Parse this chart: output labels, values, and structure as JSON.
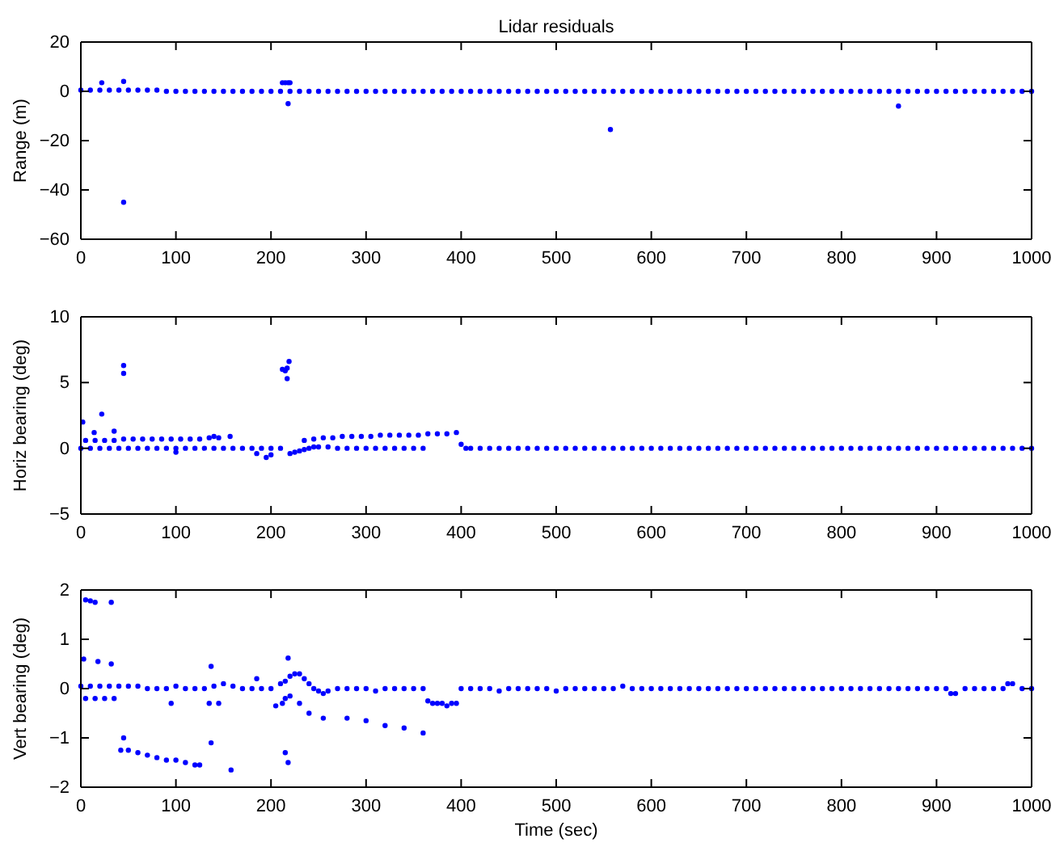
{
  "chart_data": [
    {
      "type": "scatter",
      "title": "Lidar residuals",
      "ylabel": "Range (m)",
      "xlim": [
        0,
        1000
      ],
      "xticks": [
        0,
        100,
        200,
        300,
        400,
        500,
        600,
        700,
        800,
        900,
        1000
      ],
      "ylim": [
        -60,
        20
      ],
      "yticks": [
        -60,
        -40,
        -20,
        0,
        20
      ],
      "marker": "circle",
      "grid": false,
      "series": [
        {
          "color": "#0000ff",
          "x": [
            0,
            10,
            20,
            30,
            40,
            50,
            60,
            70,
            80,
            90,
            100,
            110,
            120,
            130,
            140,
            150,
            160,
            170,
            180,
            190,
            200,
            210,
            220,
            230,
            240,
            250,
            260,
            270,
            280,
            290,
            300,
            310,
            320,
            330,
            340,
            350,
            360,
            370,
            380,
            390,
            400,
            410,
            420,
            430,
            440,
            450,
            460,
            470,
            480,
            490,
            500,
            510,
            520,
            530,
            540,
            550,
            560,
            570,
            580,
            590,
            600,
            610,
            620,
            630,
            640,
            650,
            660,
            670,
            680,
            690,
            700,
            710,
            720,
            730,
            740,
            750,
            760,
            770,
            780,
            790,
            800,
            810,
            820,
            830,
            840,
            850,
            860,
            870,
            880,
            890,
            900,
            910,
            920,
            930,
            940,
            950,
            960,
            970,
            980,
            990,
            1000,
            22,
            45,
            45,
            212,
            215,
            218,
            220,
            218,
            557,
            860
          ],
          "values": [
            0.5,
            0.5,
            0.5,
            0.5,
            0.5,
            0.5,
            0.5,
            0.5,
            0.5,
            0,
            0,
            0,
            0,
            0,
            0,
            0,
            0,
            0,
            0,
            0,
            0,
            0,
            0,
            0,
            0,
            0,
            0,
            0,
            0,
            0,
            0,
            0,
            0,
            0,
            0,
            0,
            0,
            0,
            0,
            0,
            0,
            0,
            0,
            0,
            0,
            0,
            0,
            0,
            0,
            0,
            0,
            0,
            0,
            0,
            0,
            0,
            0,
            0,
            0,
            0,
            0,
            0,
            0,
            0,
            0,
            0,
            0,
            0,
            0,
            0,
            0,
            0,
            0,
            0,
            0,
            0,
            0,
            0,
            0,
            0,
            0,
            0,
            0,
            0,
            0,
            0,
            0,
            0,
            0,
            0,
            0,
            0,
            0,
            0,
            0,
            0,
            0,
            0,
            0,
            0,
            0,
            3.5,
            4,
            -45,
            3.5,
            3.5,
            3.5,
            3.5,
            -5,
            -15.5,
            -6
          ]
        }
      ]
    },
    {
      "type": "scatter",
      "ylabel": "Horiz bearing (deg)",
      "xlim": [
        0,
        1000
      ],
      "xticks": [
        0,
        100,
        200,
        300,
        400,
        500,
        600,
        700,
        800,
        900,
        1000
      ],
      "ylim": [
        -5,
        10
      ],
      "yticks": [
        -5,
        0,
        5,
        10
      ],
      "marker": "circle",
      "grid": false,
      "series": [
        {
          "color": "#0000ff",
          "x": [
            0,
            10,
            20,
            30,
            40,
            50,
            60,
            70,
            80,
            90,
            100,
            110,
            120,
            130,
            140,
            150,
            160,
            170,
            180,
            190,
            200,
            210,
            220,
            225,
            230,
            235,
            240,
            245,
            250,
            260,
            270,
            280,
            290,
            300,
            310,
            320,
            330,
            340,
            350,
            360,
            5,
            15,
            25,
            35,
            45,
            55,
            65,
            75,
            85,
            95,
            105,
            115,
            125,
            135,
            145,
            235,
            245,
            255,
            265,
            275,
            285,
            295,
            305,
            315,
            325,
            335,
            345,
            355,
            365,
            375,
            385,
            395,
            400,
            405,
            410,
            420,
            430,
            440,
            450,
            460,
            470,
            480,
            490,
            500,
            510,
            520,
            530,
            540,
            550,
            560,
            570,
            580,
            590,
            600,
            610,
            620,
            630,
            640,
            650,
            660,
            670,
            680,
            690,
            700,
            710,
            720,
            730,
            740,
            750,
            760,
            770,
            780,
            790,
            800,
            810,
            820,
            830,
            840,
            850,
            860,
            870,
            880,
            890,
            900,
            910,
            920,
            930,
            940,
            950,
            960,
            970,
            980,
            990,
            1000,
            2,
            45,
            45,
            22,
            35,
            14,
            212,
            215,
            217,
            219,
            217,
            185,
            195,
            200,
            140,
            157,
            100
          ],
          "values": [
            0,
            0,
            0,
            0,
            0,
            0,
            0,
            0,
            0,
            0,
            0,
            0,
            0,
            0,
            0,
            0,
            0,
            0,
            0,
            0,
            0,
            0,
            -0.4,
            -0.3,
            -0.2,
            -0.1,
            0,
            0.1,
            0.1,
            0.1,
            0,
            0,
            0,
            0,
            0,
            0,
            0,
            0,
            0,
            0,
            0.6,
            0.6,
            0.6,
            0.6,
            0.7,
            0.7,
            0.7,
            0.7,
            0.7,
            0.7,
            0.7,
            0.7,
            0.7,
            0.8,
            0.8,
            0.6,
            0.7,
            0.8,
            0.8,
            0.9,
            0.9,
            0.9,
            0.9,
            1,
            1,
            1,
            1,
            1,
            1.1,
            1.1,
            1.1,
            1.2,
            0.3,
            0,
            0,
            0,
            0,
            0,
            0,
            0,
            0,
            0,
            0,
            0,
            0,
            0,
            0,
            0,
            0,
            0,
            0,
            0,
            0,
            0,
            0,
            0,
            0,
            0,
            0,
            0,
            0,
            0,
            0,
            0,
            0,
            0,
            0,
            0,
            0,
            0,
            0,
            0,
            0,
            0,
            0,
            0,
            0,
            0,
            0,
            0,
            0,
            0,
            0,
            0,
            0,
            0,
            0,
            0,
            0,
            0,
            0,
            0,
            0,
            0,
            2,
            6.3,
            5.7,
            2.6,
            1.3,
            1.2,
            6,
            5.9,
            5.3,
            6.6,
            6.1,
            -0.4,
            -0.7,
            -0.5,
            0.9,
            0.9,
            -0.3
          ]
        }
      ]
    },
    {
      "type": "scatter",
      "ylabel": "Vert bearing (deg)",
      "xlabel": "Time (sec)",
      "xlim": [
        0,
        1000
      ],
      "xticks": [
        0,
        100,
        200,
        300,
        400,
        500,
        600,
        700,
        800,
        900,
        1000
      ],
      "ylim": [
        -2,
        2
      ],
      "yticks": [
        -2,
        -1,
        0,
        1,
        2
      ],
      "marker": "circle",
      "grid": false,
      "series": [
        {
          "color": "#0000ff",
          "x": [
            0,
            10,
            20,
            30,
            40,
            50,
            60,
            70,
            80,
            90,
            100,
            110,
            120,
            130,
            140,
            150,
            160,
            170,
            180,
            190,
            200,
            210,
            215,
            220,
            225,
            230,
            235,
            240,
            245,
            250,
            255,
            260,
            270,
            280,
            290,
            300,
            310,
            320,
            330,
            340,
            350,
            360,
            365,
            370,
            375,
            380,
            385,
            390,
            395,
            400,
            410,
            420,
            430,
            440,
            450,
            460,
            470,
            480,
            490,
            500,
            510,
            520,
            530,
            540,
            550,
            560,
            570,
            580,
            590,
            600,
            610,
            620,
            630,
            640,
            650,
            660,
            670,
            680,
            690,
            700,
            710,
            720,
            730,
            740,
            750,
            760,
            770,
            780,
            790,
            800,
            810,
            820,
            830,
            840,
            850,
            860,
            870,
            880,
            890,
            900,
            910,
            920,
            930,
            940,
            950,
            960,
            970,
            980,
            990,
            1000,
            5,
            15,
            25,
            35,
            230,
            240,
            255,
            280,
            300,
            320,
            340,
            360,
            42,
            50,
            60,
            70,
            80,
            90,
            100,
            110,
            120,
            125,
            5,
            10,
            15,
            32,
            3,
            18,
            32,
            45,
            137,
            137,
            158,
            215,
            218,
            218,
            212,
            215,
            220,
            205,
            135,
            145,
            95,
            185,
            975,
            915
          ],
          "values": [
            0.05,
            0.05,
            0.05,
            0.05,
            0.05,
            0.05,
            0.05,
            0,
            0,
            0,
            0.05,
            0,
            0,
            0,
            0.05,
            0.1,
            0.05,
            0,
            0,
            0,
            0,
            0.1,
            0.15,
            0.25,
            0.3,
            0.3,
            0.2,
            0.1,
            0,
            -0.05,
            -0.1,
            -0.05,
            0,
            0,
            0,
            0,
            -0.05,
            0,
            0,
            0,
            0,
            0,
            -0.25,
            -0.3,
            -0.3,
            -0.3,
            -0.35,
            -0.3,
            -0.3,
            0,
            0,
            0,
            0,
            -0.05,
            0,
            0,
            0,
            0,
            0,
            -0.05,
            0,
            0,
            0,
            0,
            0,
            0,
            0.05,
            0,
            0,
            0,
            0,
            0,
            0,
            0,
            0,
            0,
            0,
            0,
            0,
            0,
            0,
            0,
            0,
            0,
            0,
            0,
            0,
            0,
            0,
            0,
            0,
            0,
            0,
            0,
            0,
            0,
            0,
            0,
            0,
            0,
            0,
            -0.1,
            0,
            0,
            0,
            0,
            0,
            0.1,
            0,
            0,
            -0.2,
            -0.2,
            -0.2,
            -0.2,
            -0.3,
            -0.5,
            -0.6,
            -0.6,
            -0.65,
            -0.75,
            -0.8,
            -0.9,
            -1.25,
            -1.25,
            -1.3,
            -1.35,
            -1.4,
            -1.45,
            -1.45,
            -1.5,
            -1.55,
            -1.55,
            1.8,
            1.78,
            1.75,
            1.75,
            0.6,
            0.55,
            0.5,
            -1,
            0.45,
            -1.1,
            -1.65,
            -1.3,
            -1.5,
            0.62,
            -0.3,
            -0.2,
            -0.15,
            -0.35,
            -0.3,
            -0.3,
            -0.3,
            0.2,
            0.1,
            -0.1
          ]
        }
      ]
    }
  ]
}
